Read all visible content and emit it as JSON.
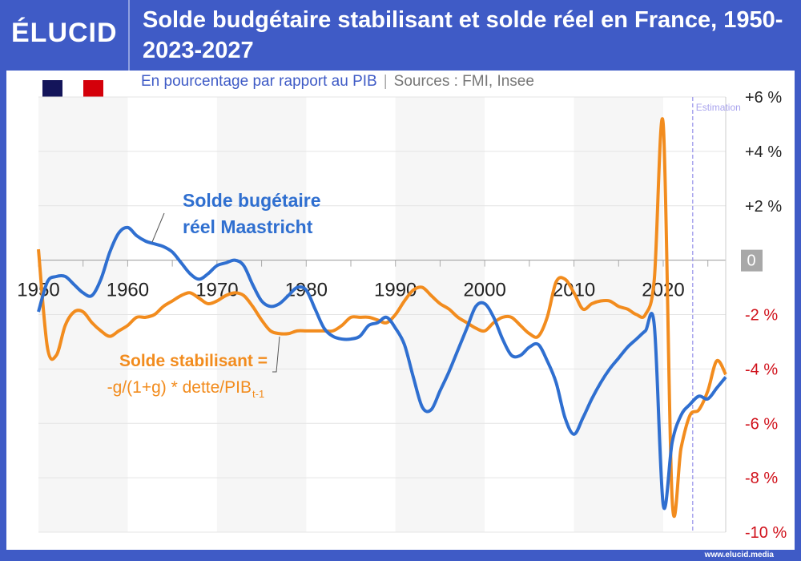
{
  "header": {
    "logo": "ÉLUCID",
    "title": "Solde budgétaire stabilisant et solde réel en France, 1950-2023-2027"
  },
  "subtitle": {
    "unit": "En pourcentage par rapport au PIB",
    "separator": "|",
    "sources": "Sources : FMI, Insee"
  },
  "footer": "www.elucid.media",
  "colors": {
    "brand": "#3f5bc6",
    "blue_series": "#2f6fd0",
    "orange_series": "#f28c1e",
    "negative": "#d0101a",
    "estimation": "#a9a4ee"
  },
  "chart_data": {
    "type": "line",
    "title": "Solde budgétaire stabilisant et solde réel en France, 1950-2023-2027",
    "ylabel": "% du PIB",
    "xlim": [
      1950,
      2027
    ],
    "ylim": [
      -10,
      6
    ],
    "x_ticks": [
      "1950",
      "1960",
      "1970",
      "1980",
      "1990",
      "2000",
      "2010",
      "2020"
    ],
    "y_ticks": [
      {
        "v": 6,
        "label": "+6 %"
      },
      {
        "v": 4,
        "label": "+4 %"
      },
      {
        "v": 2,
        "label": "+2 %"
      },
      {
        "v": 0,
        "label": "0"
      },
      {
        "v": -2,
        "label": "-2 %"
      },
      {
        "v": -4,
        "label": "-4 %"
      },
      {
        "v": -6,
        "label": "-6 %"
      },
      {
        "v": -8,
        "label": "-8 %"
      },
      {
        "v": -10,
        "label": "-10 %"
      }
    ],
    "estimation": {
      "label": "Estimation",
      "from_year": 2023.3
    },
    "x": [
      1950,
      1951,
      1952,
      1953,
      1954,
      1955,
      1956,
      1957,
      1958,
      1959,
      1960,
      1961,
      1962,
      1963,
      1964,
      1965,
      1966,
      1967,
      1968,
      1969,
      1970,
      1971,
      1972,
      1973,
      1974,
      1975,
      1976,
      1977,
      1978,
      1979,
      1980,
      1981,
      1982,
      1983,
      1984,
      1985,
      1986,
      1987,
      1988,
      1989,
      1990,
      1991,
      1992,
      1993,
      1994,
      1995,
      1996,
      1997,
      1998,
      1999,
      2000,
      2001,
      2002,
      2003,
      2004,
      2005,
      2006,
      2007,
      2008,
      2009,
      2010,
      2011,
      2012,
      2013,
      2014,
      2015,
      2016,
      2017,
      2018,
      2019,
      2020,
      2021,
      2022,
      2023,
      2024,
      2025,
      2026,
      2027
    ],
    "series": [
      {
        "name": "Solde bugétaire réel Maastricht",
        "label_line1": "Solde bugétaire",
        "label_line2": "réel Maastricht",
        "values": [
          -1.9,
          -0.8,
          -0.6,
          -0.6,
          -0.9,
          -1.2,
          -1.3,
          -0.7,
          0.3,
          1.0,
          1.2,
          0.9,
          0.7,
          0.6,
          0.5,
          0.3,
          -0.1,
          -0.5,
          -0.7,
          -0.5,
          -0.2,
          -0.1,
          0.0,
          -0.2,
          -0.9,
          -1.5,
          -1.7,
          -1.6,
          -1.3,
          -1.0,
          -1.1,
          -1.8,
          -2.5,
          -2.8,
          -2.9,
          -2.9,
          -2.8,
          -2.4,
          -2.3,
          -2.1,
          -2.5,
          -3.1,
          -4.3,
          -5.4,
          -5.5,
          -4.8,
          -4.1,
          -3.3,
          -2.5,
          -1.7,
          -1.6,
          -2.1,
          -2.9,
          -3.5,
          -3.5,
          -3.2,
          -3.1,
          -3.7,
          -4.5,
          -5.8,
          -6.4,
          -5.8,
          -5.1,
          -4.5,
          -4.0,
          -3.6,
          -3.2,
          -2.9,
          -2.6,
          -2.4,
          -9.0,
          -6.7,
          -5.7,
          -5.3,
          -5.0,
          -5.1,
          -4.7,
          -4.3
        ]
      },
      {
        "name": "Solde stabilisant = -g/(1+g) * dette/PIB t-1",
        "label_line1": "Solde stabilisant =",
        "label_line2": "-g/(1+g) * dette/PIB",
        "label_sub": "t-1",
        "values": [
          0.4,
          -3.2,
          -3.5,
          -2.4,
          -1.9,
          -1.9,
          -2.3,
          -2.6,
          -2.8,
          -2.6,
          -2.4,
          -2.1,
          -2.1,
          -2.0,
          -1.7,
          -1.5,
          -1.3,
          -1.2,
          -1.4,
          -1.6,
          -1.5,
          -1.3,
          -1.2,
          -1.3,
          -1.7,
          -2.2,
          -2.6,
          -2.7,
          -2.7,
          -2.6,
          -2.6,
          -2.6,
          -2.6,
          -2.6,
          -2.4,
          -2.1,
          -2.1,
          -2.1,
          -2.2,
          -2.3,
          -2.0,
          -1.5,
          -1.1,
          -1.0,
          -1.3,
          -1.6,
          -1.8,
          -2.1,
          -2.3,
          -2.5,
          -2.6,
          -2.3,
          -2.1,
          -2.1,
          -2.4,
          -2.7,
          -2.8,
          -2.1,
          -0.8,
          -0.7,
          -1.2,
          -1.8,
          -1.6,
          -1.5,
          -1.5,
          -1.7,
          -1.8,
          -2.0,
          -2.0,
          -0.7,
          5.0,
          -8.8,
          -6.9,
          -5.7,
          -5.5,
          -4.8,
          -3.7,
          -4.2
        ]
      }
    ]
  }
}
